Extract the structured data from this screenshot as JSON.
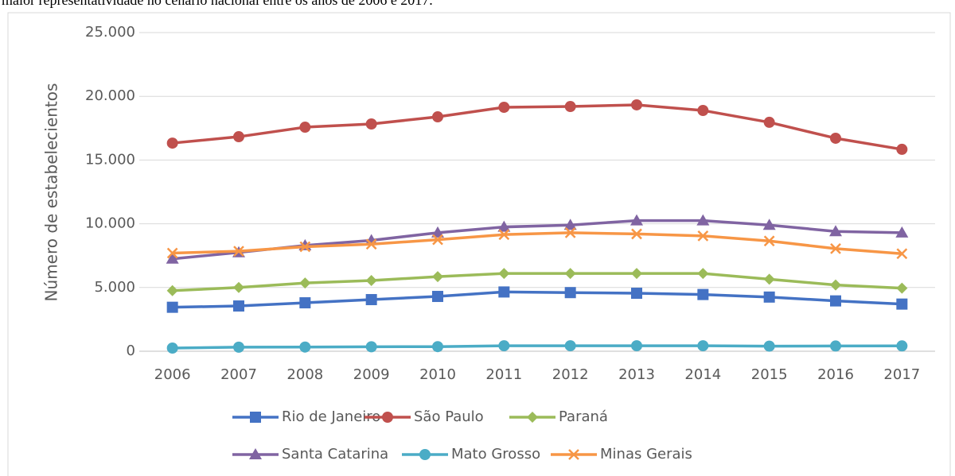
{
  "caption": "maior representatividade no cenário nacional entre os anos de 2006 e 2017.",
  "chart_data": {
    "type": "line",
    "ylabel": "Número de estabelecientos",
    "categories": [
      "2006",
      "2007",
      "2008",
      "2009",
      "2010",
      "2011",
      "2012",
      "2013",
      "2014",
      "2015",
      "2016",
      "2017"
    ],
    "series": [
      {
        "name": "Rio de Janeiro",
        "color": "#4472c4",
        "marker": "square",
        "values": [
          3450,
          3550,
          3800,
          4050,
          4300,
          4650,
          4600,
          4550,
          4450,
          4250,
          3950,
          3700
        ]
      },
      {
        "name": "São Paulo",
        "color": "#c0504d",
        "marker": "circle",
        "values": [
          16330,
          16830,
          17580,
          17830,
          18390,
          19140,
          19200,
          19330,
          18890,
          17960,
          16710,
          15840
        ]
      },
      {
        "name": "Paraná",
        "color": "#9bbb59",
        "marker": "diamond",
        "values": [
          4750,
          5000,
          5350,
          5550,
          5850,
          6100,
          6100,
          6100,
          6100,
          5650,
          5200,
          4950
        ]
      },
      {
        "name": "Santa Catarina",
        "color": "#8064a2",
        "marker": "triangle",
        "values": [
          7250,
          7750,
          8300,
          8700,
          9300,
          9750,
          9900,
          10250,
          10250,
          9900,
          9400,
          9300
        ]
      },
      {
        "name": "Mato Grosso",
        "color": "#4bacc6",
        "marker": "circle",
        "values": [
          250,
          320,
          330,
          350,
          360,
          430,
          430,
          430,
          430,
          400,
          410,
          420
        ]
      },
      {
        "name": "Minas Gerais",
        "color": "#f79646",
        "marker": "x",
        "values": [
          7700,
          7850,
          8200,
          8400,
          8750,
          9150,
          9300,
          9200,
          9050,
          8650,
          8050,
          7650
        ]
      }
    ],
    "ylim": [
      0,
      25000
    ],
    "yticks": [
      0,
      {
        "value": 5000,
        "label": "5.000"
      },
      {
        "value": 10000,
        "label": "10.000"
      },
      {
        "value": 15000,
        "label": "15.000"
      },
      {
        "value": 20000,
        "label": "20.000"
      },
      {
        "value": 25000,
        "label": "25.000"
      }
    ],
    "grid": true,
    "legend": "bottom"
  }
}
